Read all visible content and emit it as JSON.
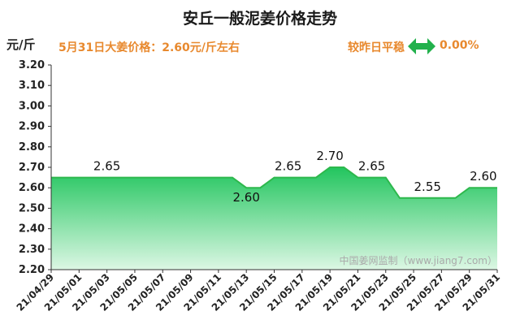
{
  "header": {
    "title": "安丘一般泥姜价格走势",
    "unit": "元/斤",
    "price_note": "5月31日大姜价格：2.60元/斤左右",
    "change_text": "较昨日平稳",
    "change_value": "0.00%",
    "change_icon": "double-arrow-icon"
  },
  "watermark": "中国姜网监制（www.jiang7.com）",
  "colors": {
    "area_top": "#22c55e",
    "area_bottom": "#dcf7e4",
    "line": "#2db84c",
    "accent": "#e8892e"
  },
  "chart_data": {
    "type": "area",
    "title": "安丘一般泥姜价格走势",
    "ylabel": "元/斤",
    "ylim": [
      2.2,
      3.2
    ],
    "ytick_step": 0.1,
    "grid": false,
    "x": [
      "21/04/29",
      "21/04/30",
      "21/05/01",
      "21/05/02",
      "21/05/03",
      "21/05/04",
      "21/05/05",
      "21/05/06",
      "21/05/07",
      "21/05/08",
      "21/05/09",
      "21/05/10",
      "21/05/11",
      "21/05/12",
      "21/05/13",
      "21/05/14",
      "21/05/15",
      "21/05/16",
      "21/05/17",
      "21/05/18",
      "21/05/19",
      "21/05/20",
      "21/05/21",
      "21/05/22",
      "21/05/23",
      "21/05/24",
      "21/05/25",
      "21/05/26",
      "21/05/27",
      "21/05/28",
      "21/05/29",
      "21/05/30",
      "21/05/31"
    ],
    "xtick_labels": [
      "21/04/29",
      "21/05/01",
      "21/05/03",
      "21/05/05",
      "21/05/07",
      "21/05/09",
      "21/05/11",
      "21/05/13",
      "21/05/15",
      "21/05/17",
      "21/05/19",
      "21/05/21",
      "21/05/23",
      "21/05/25",
      "21/05/27",
      "21/05/29",
      "21/05/31"
    ],
    "values": [
      2.65,
      2.65,
      2.65,
      2.65,
      2.65,
      2.65,
      2.65,
      2.65,
      2.65,
      2.65,
      2.65,
      2.65,
      2.65,
      2.65,
      2.6,
      2.6,
      2.65,
      2.65,
      2.65,
      2.65,
      2.7,
      2.7,
      2.65,
      2.65,
      2.65,
      2.55,
      2.55,
      2.55,
      2.55,
      2.55,
      2.6,
      2.6,
      2.6
    ],
    "data_labels": [
      {
        "x": "21/05/03",
        "text": "2.65"
      },
      {
        "x": "21/05/13",
        "text": "2.60"
      },
      {
        "x": "21/05/16",
        "text": "2.65"
      },
      {
        "x": "21/05/19",
        "text": "2.70"
      },
      {
        "x": "21/05/22",
        "text": "2.65"
      },
      {
        "x": "21/05/26",
        "text": "2.55"
      },
      {
        "x": "21/05/30",
        "text": "2.60"
      }
    ]
  }
}
